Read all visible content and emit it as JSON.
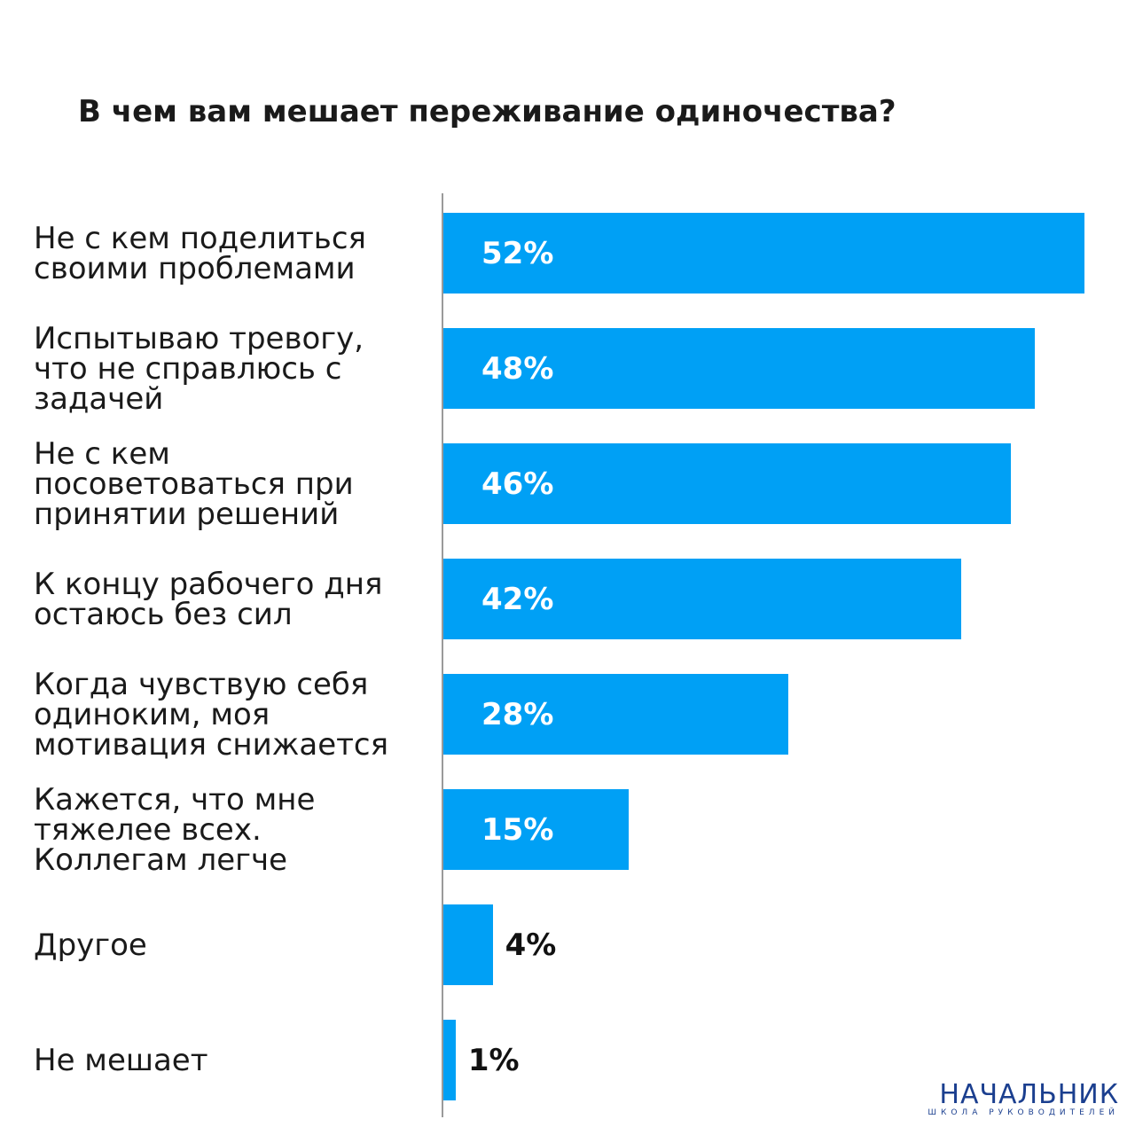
{
  "chart_data": {
    "type": "barh",
    "title": "В чем вам мешает переживание одиночества?",
    "categories": [
      "Не с кем поделиться своими проблемами",
      "Испытываю тревогу, что не справлюсь с задачей",
      "Не с кем посоветоваться при принятии решений",
      "К концу рабочего дня остаюсь без сил",
      "Когда чувствую себя одиноким, моя мотивация снижается",
      "Кажется, что мне тяжелее всех. Коллегам легче",
      "Другое",
      "Не мешает"
    ],
    "values": [
      52,
      48,
      46,
      42,
      28,
      15,
      4,
      1
    ],
    "value_labels": [
      "52%",
      "48%",
      "46%",
      "42%",
      "28%",
      "15%",
      "4%",
      "1%"
    ],
    "color": "#00a0f5"
  },
  "logo": {
    "name": "НАЧАЛЬНИК",
    "tagline": "ШКОЛА РУКОВОДИТЕЛЕЙ"
  }
}
